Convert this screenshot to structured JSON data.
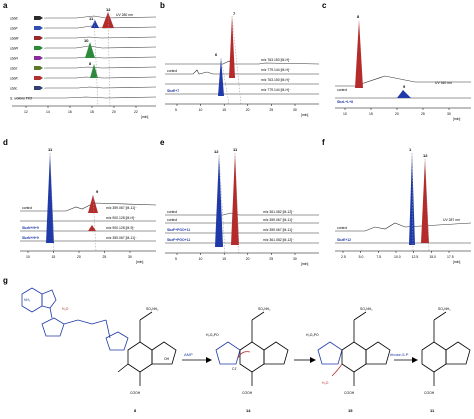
{
  "panel_labels": {
    "a": "a",
    "b": "b",
    "c": "c",
    "d": "d",
    "e": "e",
    "f": "f",
    "g": "g"
  },
  "panel_a": {
    "detector": "UV 280 nm",
    "peaks": {
      "p11": "11",
      "p12": "12",
      "p10": "10",
      "p8": "8"
    },
    "traces": [
      "sbbE",
      "sbbF",
      "sbbM",
      "sbbR",
      "sbbH",
      "sbbJ",
      "sbbK",
      "sbbL",
      "S. ivolens TK3"
    ],
    "ticks": [
      "12",
      "14",
      "16",
      "18",
      "20",
      "22"
    ],
    "unit": "[min]",
    "trace_colors": [
      "#2b2b2b",
      "#2f4fb0",
      "#9a2a2a",
      "#2a8a3a",
      "#8a2aa0",
      "#5a7a2a",
      "#b03030",
      "#304070",
      "#555555"
    ]
  },
  "panel_b": {
    "peaks": {
      "p7": "7",
      "p6": "6"
    },
    "traces": [
      {
        "label": "",
        "mz": "m/z 763.150 [M-H]⁻"
      },
      {
        "label": "control",
        "mz": "m/z 779.144 [M-H]⁻"
      },
      {
        "label": "",
        "mz": "m/z 763.150 [M-H]⁻"
      },
      {
        "label": "SbzE+7",
        "mz": "m/z 779.144 [M-H]⁻"
      }
    ],
    "ticks": [
      "5",
      "10",
      "15",
      "20",
      "25",
      "30"
    ],
    "unit": "[min]"
  },
  "panel_c": {
    "peaks": {
      "p8": "8",
      "p9": "9"
    },
    "traces": [
      {
        "label": "control"
      },
      {
        "label": "SbzL+L+8"
      }
    ],
    "detector": "UV 340 nm",
    "ticks": [
      "10",
      "15",
      "20",
      "25",
      "30"
    ],
    "unit": "[min]"
  },
  "panel_d": {
    "peaks": {
      "p11": "11",
      "p9": "9"
    },
    "traces": [
      {
        "label": "control",
        "mz": "m/z 359.067 [M-11]⁻"
      },
      {
        "label": "",
        "mz": "m/z 900.128 [M-H]⁻"
      },
      {
        "label": "SbzN+H+9",
        "mz": "m/z 900.128 [M-9]⁻"
      },
      {
        "label": "SbzN+H+9",
        "mz": "m/z 359.067 [M-11]⁻"
      }
    ],
    "ticks": [
      "10",
      "15",
      "20",
      "25",
      "30"
    ],
    "unit": "[min]"
  },
  "panel_e": {
    "peaks": {
      "p12": "12",
      "p11": "11"
    },
    "traces": [
      {
        "label": "control",
        "mz": "m/z 361.082 [M-12]⁻"
      },
      {
        "label": "control",
        "mz": "m/z 359.067 [M-11]⁻"
      },
      {
        "label": "SbzF+PGO+11",
        "mz": "m/z 359.067 [M-11]⁻"
      },
      {
        "label": "SbzF+PGO+11",
        "mz": "m/z 361.082 [M-12]⁻"
      }
    ],
    "ticks": [
      "5",
      "10",
      "15",
      "20",
      "25",
      "30"
    ],
    "unit": "[min]"
  },
  "panel_f": {
    "peaks": {
      "p1": "1",
      "p12": "12"
    },
    "traces": [
      {
        "label": "control"
      },
      {
        "label": "SbzE+12"
      }
    ],
    "detector": "UV 287 nm",
    "ticks": [
      "2.5",
      "5.0",
      "7.5",
      "10.0",
      "12.5",
      "15.0",
      "17.5"
    ],
    "unit": "[min]"
  },
  "panel_g": {
    "compounds": [
      "8",
      "14",
      "15",
      "11"
    ],
    "arrows": [
      "AMP",
      "ribose-5-P"
    ],
    "atom_labels": {
      "water1": "H₂O",
      "water2": "H₂O",
      "c1": "C1'",
      "so3": "SO₂NH₂",
      "po": "H₂O₃PO",
      "nh2": "NH₂",
      "oh": "OH",
      "cooh": "COOH"
    }
  },
  "colors": {
    "red": "#b52a2a",
    "blue": "#1f3aa8",
    "green": "#2e8b3d",
    "purple": "#7a3aa5"
  }
}
